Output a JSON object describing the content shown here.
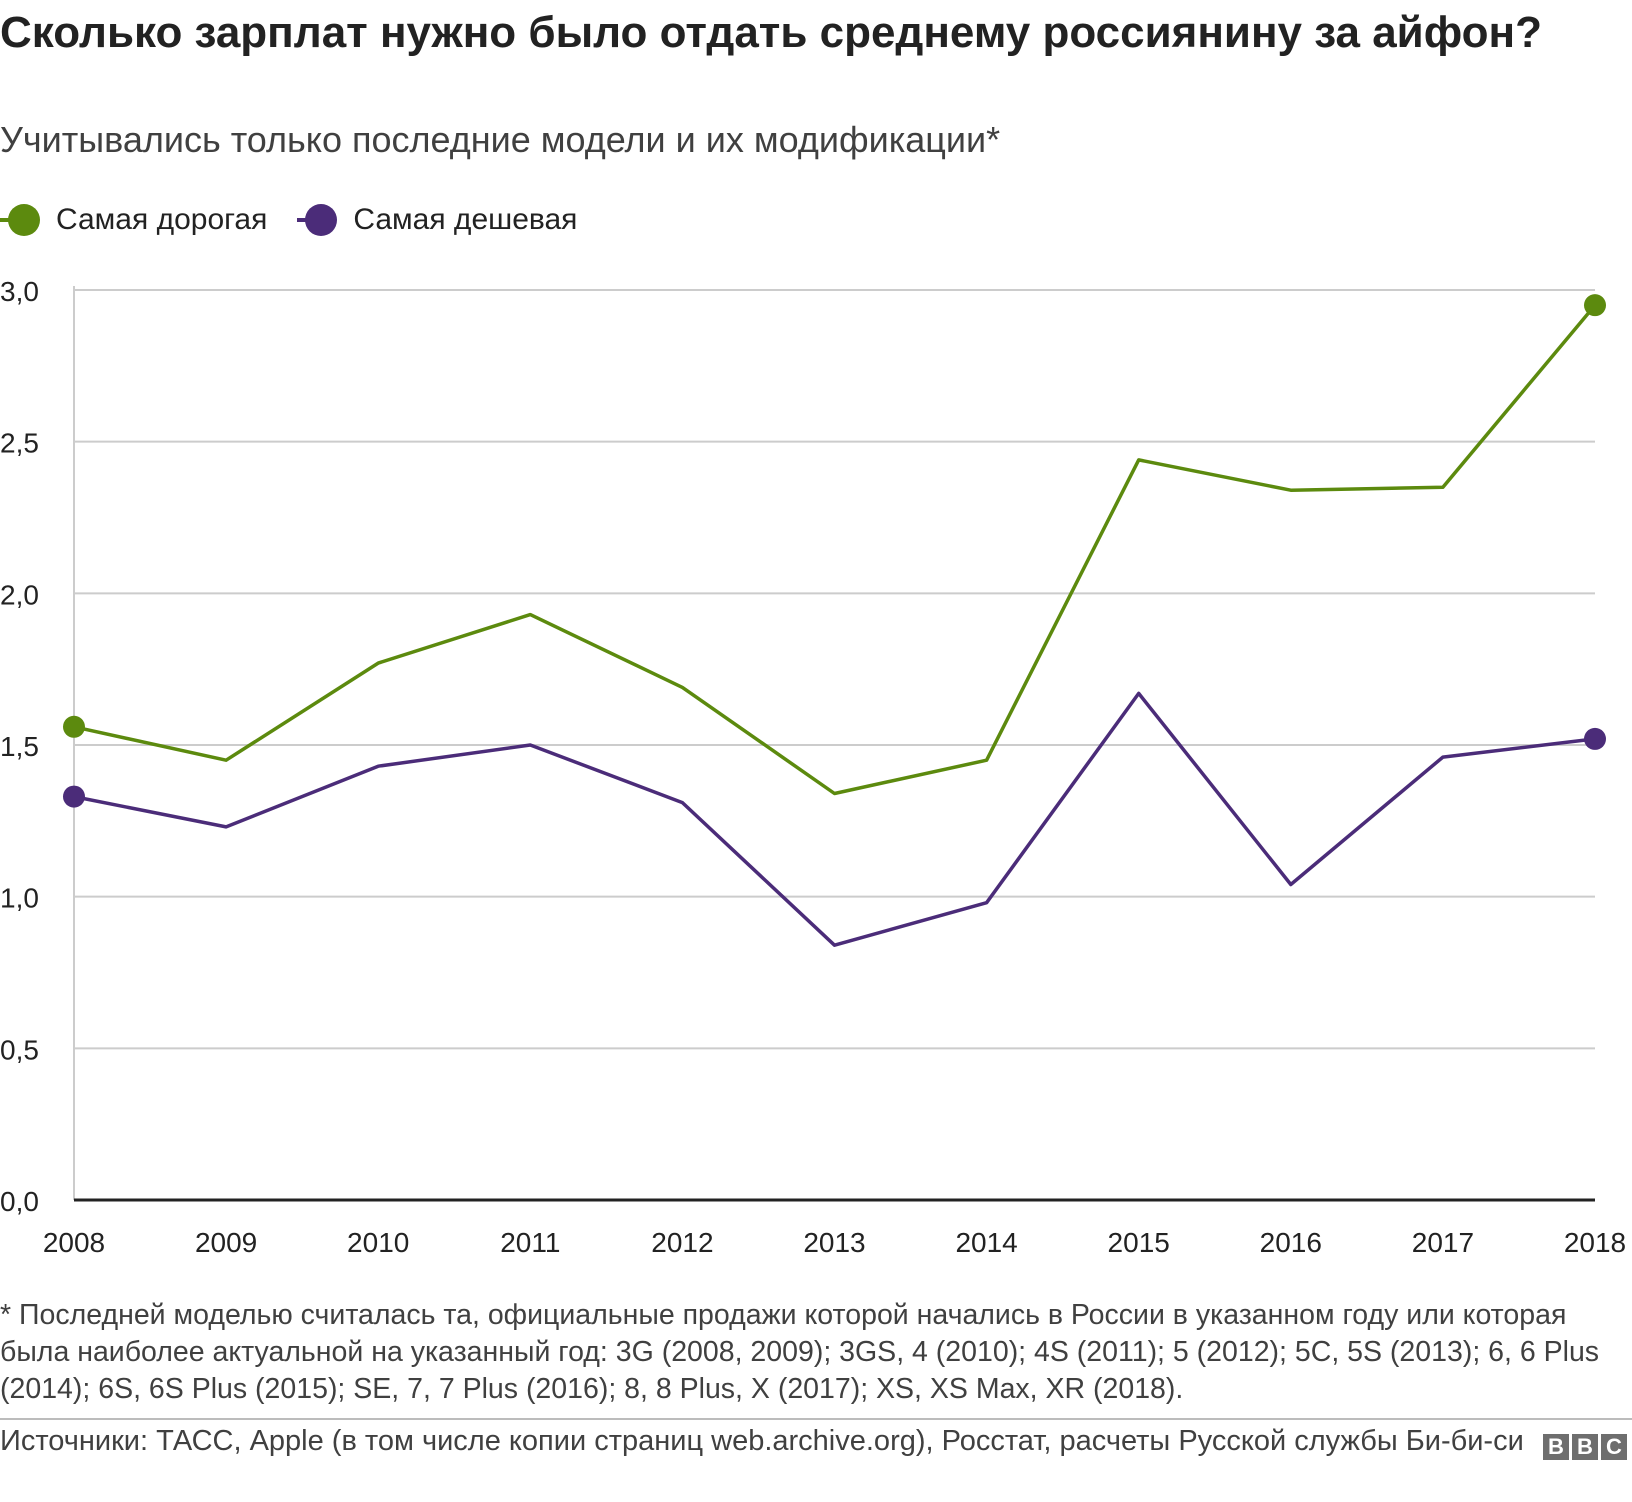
{
  "title": "Сколько зарплат нужно было отдать среднему россиянину за айфон?",
  "subtitle": "Учитывались только последние модели и их модификации*",
  "legend": {
    "expensive": "Самая дорогая",
    "cheap": "Самая дешевая"
  },
  "colors": {
    "expensive": "#5c8a0e",
    "cheap": "#4b2c79",
    "grid": "#cccccc",
    "axis": "#222222"
  },
  "chart_data": {
    "type": "line",
    "x": [
      2008,
      2009,
      2010,
      2011,
      2012,
      2013,
      2014,
      2015,
      2016,
      2017,
      2018
    ],
    "x_tick_labels": [
      "2008",
      "2009",
      "2010",
      "2011",
      "2012",
      "2013",
      "2014",
      "2015",
      "2016",
      "2017",
      "2018"
    ],
    "y_ticks": [
      0.0,
      0.5,
      1.0,
      1.5,
      2.0,
      2.5,
      3.0
    ],
    "y_tick_labels": [
      "0,0",
      "0,5",
      "1,0",
      "1,5",
      "2,0",
      "2,5",
      "3,0"
    ],
    "ylim": [
      0,
      3.0
    ],
    "grid": true,
    "legend_position": "top-left",
    "xlabel": "",
    "ylabel": "",
    "series": [
      {
        "key": "expensive",
        "name": "Самая дорогая",
        "values": [
          1.56,
          1.45,
          1.77,
          1.93,
          1.69,
          1.34,
          1.45,
          2.44,
          2.34,
          2.35,
          2.95
        ],
        "endpoint_markers": true
      },
      {
        "key": "cheap",
        "name": "Самая дешевая",
        "values": [
          1.33,
          1.23,
          1.43,
          1.5,
          1.31,
          0.84,
          0.98,
          1.67,
          1.04,
          1.46,
          1.52
        ],
        "endpoint_markers": true
      }
    ]
  },
  "footnote": "* Последней моделью считалась та, официальные продажи которой начались в России в указанном году или которая была наиболее актуальной на указанный год: 3G (2008, 2009); 3GS, 4 (2010); 4S (2011); 5 (2012); 5C, 5S (2013); 6, 6 Plus (2014); 6S, 6S Plus (2015); SE, 7, 7 Plus (2016); 8, 8 Plus, X (2017); XS, XS Max, XR (2018).",
  "source": "Источники: ТАСС, Apple (в том числе копии страниц web.archive.org), Росстат, расчеты Русской службы Би-би-си",
  "logo": [
    "B",
    "B",
    "C"
  ]
}
